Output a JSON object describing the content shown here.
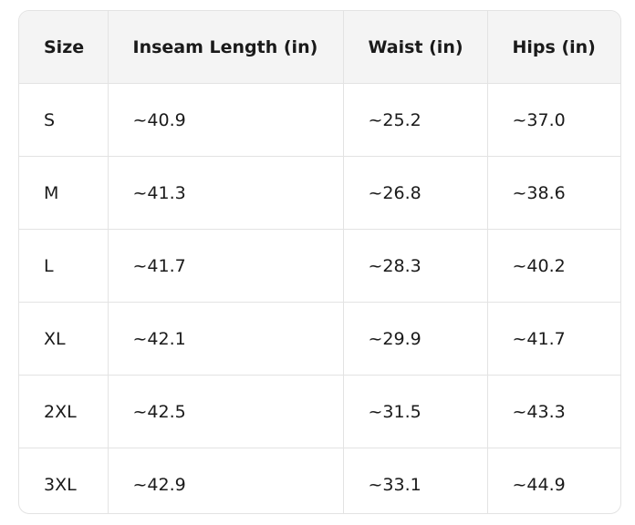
{
  "table": {
    "header": [
      "Size",
      "Inseam Length (in)",
      "Waist (in)",
      "Hips (in)"
    ],
    "rows": [
      [
        "S",
        "~40.9",
        "~25.2",
        "~37.0"
      ],
      [
        "M",
        "~41.3",
        "~26.8",
        "~38.6"
      ],
      [
        "L",
        "~41.7",
        "~28.3",
        "~40.2"
      ],
      [
        "XL",
        "~42.1",
        "~29.9",
        "~41.7"
      ],
      [
        "2XL",
        "~42.5",
        "~31.5",
        "~43.3"
      ],
      [
        "3XL",
        "~42.9",
        "~33.1",
        "~44.9"
      ]
    ]
  }
}
